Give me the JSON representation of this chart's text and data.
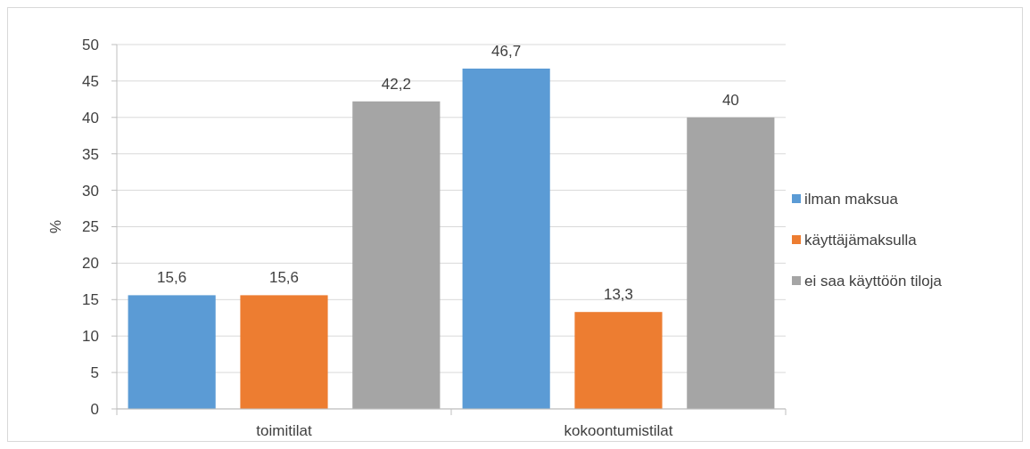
{
  "chart_data": {
    "type": "bar",
    "ylabel": "%",
    "categories": [
      "toimitilat",
      "kokoontumistilat"
    ],
    "series": [
      {
        "name": "ilman maksua",
        "color": "#5b9bd5",
        "values": [
          15.6,
          46.7
        ],
        "value_labels": [
          "15,6",
          "46,7"
        ]
      },
      {
        "name": "käyttäjämaksulla",
        "color": "#ed7d31",
        "values": [
          15.6,
          13.3
        ],
        "value_labels": [
          "15,6",
          "13,3"
        ]
      },
      {
        "name": "ei saa käyttöön tiloja",
        "color": "#a5a5a5",
        "values": [
          42.2,
          40
        ],
        "value_labels": [
          "42,2",
          "40"
        ]
      }
    ],
    "ylim": [
      0,
      50
    ],
    "yticks": [
      0,
      5,
      10,
      15,
      20,
      25,
      30,
      35,
      40,
      45,
      50
    ],
    "grid": "y",
    "legend": "right"
  }
}
